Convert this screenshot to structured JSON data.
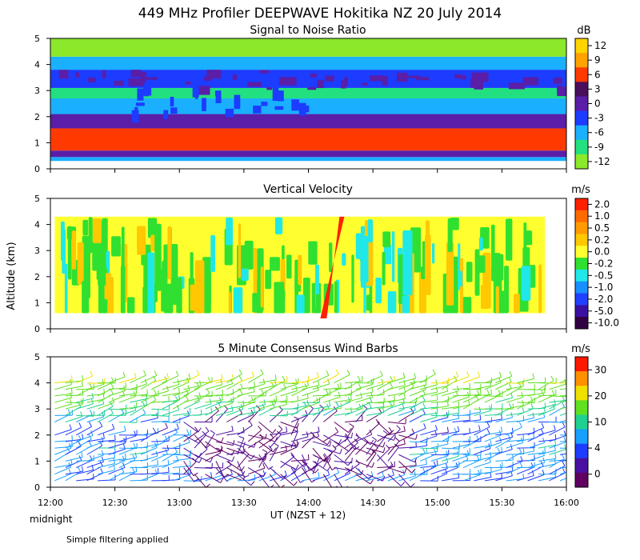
{
  "figure_title": "449 MHz Profiler DEEPWAVE Hokitika NZ 20 July 2014",
  "y_axis_label": "Altitude (km)",
  "x_axis_label": "UT  (NZST + 12)",
  "x_start_note": "midnight",
  "footnote": "Simple filtering applied",
  "x_tick_labels": [
    "12:00",
    "12:30",
    "13:00",
    "13:30",
    "14:00",
    "14:30",
    "15:00",
    "15:30",
    "16:00"
  ],
  "y_tick_labels": [
    "0",
    "1",
    "2",
    "3",
    "4",
    "5"
  ],
  "chart_data": [
    {
      "type": "heatmap",
      "title": "Signal to Noise Ratio",
      "units": "dB",
      "xlim": [
        "12:00",
        "16:00"
      ],
      "ylim": [
        0,
        5
      ],
      "colorbar_labels": [
        "12",
        "9",
        "6",
        "3",
        "0",
        "-3",
        "-6",
        "-9",
        "-12"
      ],
      "colors": [
        "#ffd400",
        "#ffa200",
        "#ff3a00",
        "#4a0f5a",
        "#5a1ea8",
        "#1c3cff",
        "#1ab0ff",
        "#22e080",
        "#8ce82a"
      ],
      "bands": [
        {
          "altitude_km": [
            0.3,
            0.45
          ],
          "snr_db": -6
        },
        {
          "altitude_km": [
            0.45,
            0.7
          ],
          "snr_db": 0
        },
        {
          "altitude_km": [
            0.7,
            1.55
          ],
          "snr_db": 6,
          "note": "patchy enhanced layer"
        },
        {
          "altitude_km": [
            1.55,
            2.1
          ],
          "snr_db": 0
        },
        {
          "altitude_km": [
            2.1,
            2.7
          ],
          "snr_db": -6
        },
        {
          "altitude_km": [
            2.7,
            3.1
          ],
          "snr_db": -9
        },
        {
          "altitude_km": [
            3.1,
            3.8
          ],
          "snr_db": -3
        },
        {
          "altitude_km": [
            3.8,
            4.3
          ],
          "snr_db": -6
        },
        {
          "altitude_km": [
            4.3,
            5.0
          ],
          "snr_db": -12
        }
      ]
    },
    {
      "type": "heatmap",
      "title": "Vertical Velocity",
      "units": "m/s",
      "xlim": [
        "12:00",
        "16:00"
      ],
      "ylim": [
        0,
        5
      ],
      "colorbar_labels": [
        "2.0",
        "1.0",
        "0.5",
        "0.2",
        "0.0",
        "-0.2",
        "-0.5",
        "-1.0",
        "-2.0",
        "-5.0",
        "-10.0"
      ],
      "colors": [
        "#ff2000",
        "#ff6a00",
        "#ff9a00",
        "#ffc800",
        "#ffff30",
        "#30e030",
        "#20e8e8",
        "#1890ff",
        "#2040ff",
        "#3a10a0",
        "#300040"
      ],
      "data_altitude_km": [
        0.6,
        4.3
      ],
      "dominant_values_m_s": [
        0.0,
        -0.2
      ],
      "feature": {
        "time": "14:10",
        "value_m_s": 2.0,
        "note": "strong updraft column"
      }
    },
    {
      "type": "scatter",
      "title": "5 Minute Consensus Wind Barbs",
      "units": "m/s",
      "xlim": [
        "12:00",
        "16:00"
      ],
      "ylim": [
        0,
        5
      ],
      "colorbar_labels": [
        "30",
        "20",
        "10",
        "4",
        "0"
      ],
      "colors": [
        "#ff1800",
        "#ff9000",
        "#f0e000",
        "#60e020",
        "#20d090",
        "#18a0ff",
        "#1c3cff",
        "#4a10a0",
        "#600060"
      ],
      "barb_rows_km": [
        0.25,
        0.5,
        0.75,
        1.0,
        1.25,
        1.5,
        1.75,
        2.0,
        2.25,
        2.5,
        2.75,
        3.0,
        3.25,
        3.5,
        3.75,
        4.0
      ],
      "speed_model": [
        {
          "altitude_km": 0.25,
          "speed_m_s": 7
        },
        {
          "altitude_km": 1.5,
          "speed_m_s": 8
        },
        {
          "altitude_km": 2.0,
          "speed_m_s": 6
        },
        {
          "altitude_km": 2.5,
          "speed_m_s": 8
        },
        {
          "altitude_km": 3.0,
          "speed_m_s": 12
        },
        {
          "altitude_km": 3.5,
          "speed_m_s": 14
        },
        {
          "altitude_km": 4.0,
          "speed_m_s": 17
        }
      ],
      "weak_wind_period": {
        "from": "13:00",
        "to": "14:45",
        "altitude_km": [
          0.5,
          2.5
        ],
        "speed_m_s": 2
      }
    }
  ]
}
